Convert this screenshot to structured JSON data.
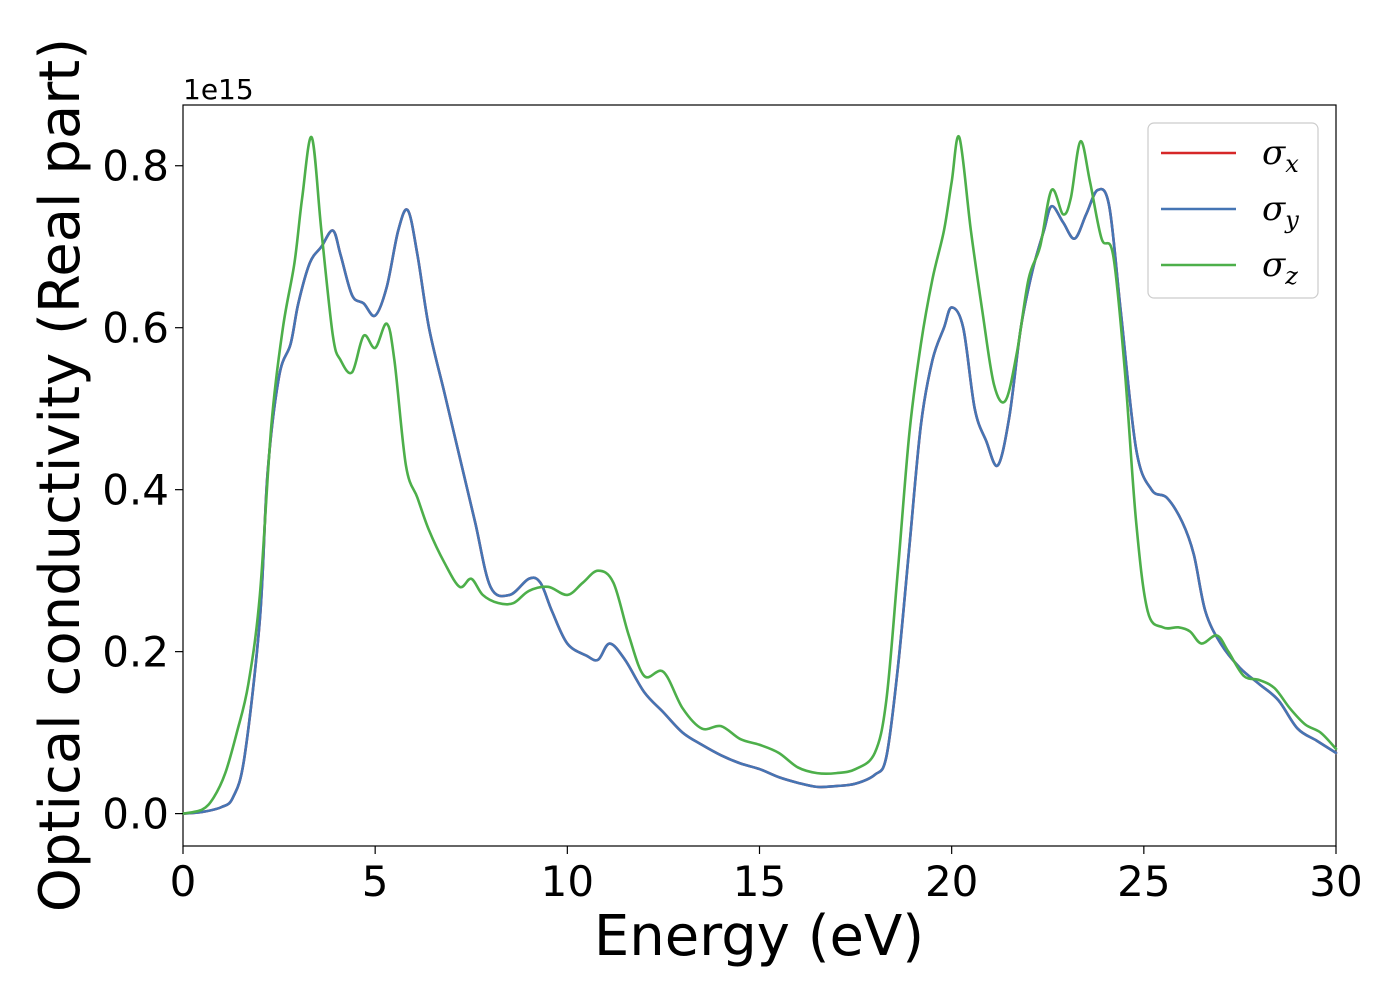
{
  "chart_data": {
    "type": "line",
    "title": "",
    "xlabel": "Energy (eV)",
    "ylabel": "Optical conductivity (Real part)",
    "y_offset_label": "1e15",
    "xlim": [
      0,
      30
    ],
    "ylim": [
      -0.04,
      0.875
    ],
    "x_ticks": [
      0,
      5,
      10,
      15,
      20,
      25,
      30
    ],
    "x_tick_labels": [
      "0",
      "5",
      "10",
      "15",
      "20",
      "25",
      "30"
    ],
    "y_ticks": [
      0.0,
      0.2,
      0.4,
      0.6,
      0.8
    ],
    "y_tick_labels": [
      "0.0",
      "0.2",
      "0.4",
      "0.6",
      "0.8"
    ],
    "grid": false,
    "legend_position": "top-right",
    "series": [
      {
        "name": "σx",
        "symbol": "σ",
        "subscript": "x",
        "color": "#d62728",
        "x": [
          0,
          0.5,
          1.0,
          1.3,
          1.6,
          2.0,
          2.2,
          2.5,
          2.8,
          3.0,
          3.3,
          3.6,
          3.9,
          4.1,
          4.4,
          4.7,
          5.0,
          5.3,
          5.6,
          5.85,
          6.1,
          6.4,
          6.8,
          7.2,
          7.6,
          8.0,
          8.5,
          9.0,
          9.3,
          9.6,
          10.0,
          10.5,
          10.8,
          11.1,
          11.5,
          12.0,
          12.5,
          13.0,
          13.5,
          14.0,
          14.5,
          15.0,
          15.5,
          16.0,
          16.5,
          17.0,
          17.5,
          18.0,
          18.3,
          18.6,
          18.9,
          19.2,
          19.5,
          19.8,
          20.0,
          20.3,
          20.6,
          20.9,
          21.2,
          21.5,
          21.8,
          22.1,
          22.4,
          22.6,
          22.9,
          23.2,
          23.5,
          23.8,
          24.1,
          24.4,
          24.8,
          25.2,
          25.6,
          26.0,
          26.3,
          26.6,
          27.0,
          27.5,
          28.0,
          28.5,
          29.0,
          29.5,
          30.0
        ],
        "values": [
          0.0,
          0.002,
          0.008,
          0.02,
          0.07,
          0.24,
          0.42,
          0.54,
          0.58,
          0.63,
          0.68,
          0.7,
          0.72,
          0.69,
          0.64,
          0.63,
          0.615,
          0.65,
          0.72,
          0.745,
          0.69,
          0.6,
          0.52,
          0.44,
          0.36,
          0.28,
          0.27,
          0.29,
          0.285,
          0.25,
          0.21,
          0.195,
          0.19,
          0.21,
          0.19,
          0.15,
          0.125,
          0.1,
          0.085,
          0.072,
          0.062,
          0.055,
          0.045,
          0.038,
          0.033,
          0.034,
          0.037,
          0.048,
          0.07,
          0.18,
          0.33,
          0.48,
          0.56,
          0.6,
          0.625,
          0.6,
          0.5,
          0.46,
          0.43,
          0.49,
          0.6,
          0.67,
          0.72,
          0.75,
          0.73,
          0.71,
          0.74,
          0.77,
          0.75,
          0.62,
          0.45,
          0.4,
          0.39,
          0.36,
          0.32,
          0.25,
          0.21,
          0.18,
          0.16,
          0.14,
          0.105,
          0.09,
          0.075
        ]
      },
      {
        "name": "σy",
        "symbol": "σ",
        "subscript": "y",
        "color": "#4575b4",
        "x": [
          0,
          0.5,
          1.0,
          1.3,
          1.6,
          2.0,
          2.2,
          2.5,
          2.8,
          3.0,
          3.3,
          3.6,
          3.9,
          4.1,
          4.4,
          4.7,
          5.0,
          5.3,
          5.6,
          5.85,
          6.1,
          6.4,
          6.8,
          7.2,
          7.6,
          8.0,
          8.5,
          9.0,
          9.3,
          9.6,
          10.0,
          10.5,
          10.8,
          11.1,
          11.5,
          12.0,
          12.5,
          13.0,
          13.5,
          14.0,
          14.5,
          15.0,
          15.5,
          16.0,
          16.5,
          17.0,
          17.5,
          18.0,
          18.3,
          18.6,
          18.9,
          19.2,
          19.5,
          19.8,
          20.0,
          20.3,
          20.6,
          20.9,
          21.2,
          21.5,
          21.8,
          22.1,
          22.4,
          22.6,
          22.9,
          23.2,
          23.5,
          23.8,
          24.1,
          24.4,
          24.8,
          25.2,
          25.6,
          26.0,
          26.3,
          26.6,
          27.0,
          27.5,
          28.0,
          28.5,
          29.0,
          29.5,
          30.0
        ],
        "values": [
          0.0,
          0.002,
          0.008,
          0.02,
          0.07,
          0.24,
          0.42,
          0.54,
          0.58,
          0.63,
          0.68,
          0.7,
          0.72,
          0.69,
          0.64,
          0.63,
          0.615,
          0.65,
          0.72,
          0.745,
          0.69,
          0.6,
          0.52,
          0.44,
          0.36,
          0.28,
          0.27,
          0.29,
          0.285,
          0.25,
          0.21,
          0.195,
          0.19,
          0.21,
          0.19,
          0.15,
          0.125,
          0.1,
          0.085,
          0.072,
          0.062,
          0.055,
          0.045,
          0.038,
          0.033,
          0.034,
          0.037,
          0.048,
          0.07,
          0.18,
          0.33,
          0.48,
          0.56,
          0.6,
          0.625,
          0.6,
          0.5,
          0.46,
          0.43,
          0.49,
          0.6,
          0.67,
          0.72,
          0.75,
          0.73,
          0.71,
          0.74,
          0.77,
          0.75,
          0.62,
          0.45,
          0.4,
          0.39,
          0.36,
          0.32,
          0.25,
          0.21,
          0.18,
          0.16,
          0.14,
          0.105,
          0.09,
          0.075
        ]
      },
      {
        "name": "σz",
        "symbol": "σ",
        "subscript": "z",
        "color": "#4daf4a",
        "x": [
          0,
          0.5,
          0.8,
          1.1,
          1.4,
          1.7,
          2.0,
          2.3,
          2.6,
          2.9,
          3.1,
          3.35,
          3.6,
          3.9,
          4.1,
          4.4,
          4.7,
          5.0,
          5.3,
          5.5,
          5.8,
          6.1,
          6.4,
          6.8,
          7.2,
          7.5,
          7.8,
          8.2,
          8.6,
          9.0,
          9.5,
          10.0,
          10.4,
          10.8,
          11.2,
          11.6,
          12.0,
          12.5,
          13.0,
          13.5,
          14.0,
          14.5,
          15.0,
          15.5,
          16.0,
          16.5,
          17.0,
          17.5,
          18.0,
          18.3,
          18.6,
          18.9,
          19.2,
          19.5,
          19.8,
          20.0,
          20.2,
          20.5,
          20.8,
          21.1,
          21.4,
          21.7,
          22.0,
          22.3,
          22.6,
          22.9,
          23.1,
          23.35,
          23.6,
          23.9,
          24.2,
          24.5,
          24.8,
          25.1,
          25.5,
          25.9,
          26.2,
          26.5,
          26.9,
          27.2,
          27.6,
          28.0,
          28.4,
          28.8,
          29.2,
          29.6,
          30.0
        ],
        "values": [
          0.0,
          0.005,
          0.02,
          0.05,
          0.1,
          0.16,
          0.27,
          0.48,
          0.6,
          0.68,
          0.76,
          0.835,
          0.72,
          0.59,
          0.56,
          0.545,
          0.59,
          0.575,
          0.605,
          0.56,
          0.43,
          0.39,
          0.35,
          0.31,
          0.28,
          0.29,
          0.27,
          0.26,
          0.26,
          0.275,
          0.28,
          0.27,
          0.285,
          0.3,
          0.285,
          0.22,
          0.17,
          0.175,
          0.13,
          0.105,
          0.108,
          0.092,
          0.085,
          0.075,
          0.057,
          0.05,
          0.05,
          0.055,
          0.075,
          0.14,
          0.3,
          0.47,
          0.58,
          0.66,
          0.72,
          0.78,
          0.835,
          0.72,
          0.62,
          0.53,
          0.51,
          0.57,
          0.66,
          0.7,
          0.77,
          0.74,
          0.76,
          0.83,
          0.78,
          0.71,
          0.69,
          0.55,
          0.36,
          0.25,
          0.23,
          0.23,
          0.225,
          0.21,
          0.22,
          0.2,
          0.17,
          0.165,
          0.155,
          0.13,
          0.11,
          0.1,
          0.08
        ]
      }
    ]
  }
}
